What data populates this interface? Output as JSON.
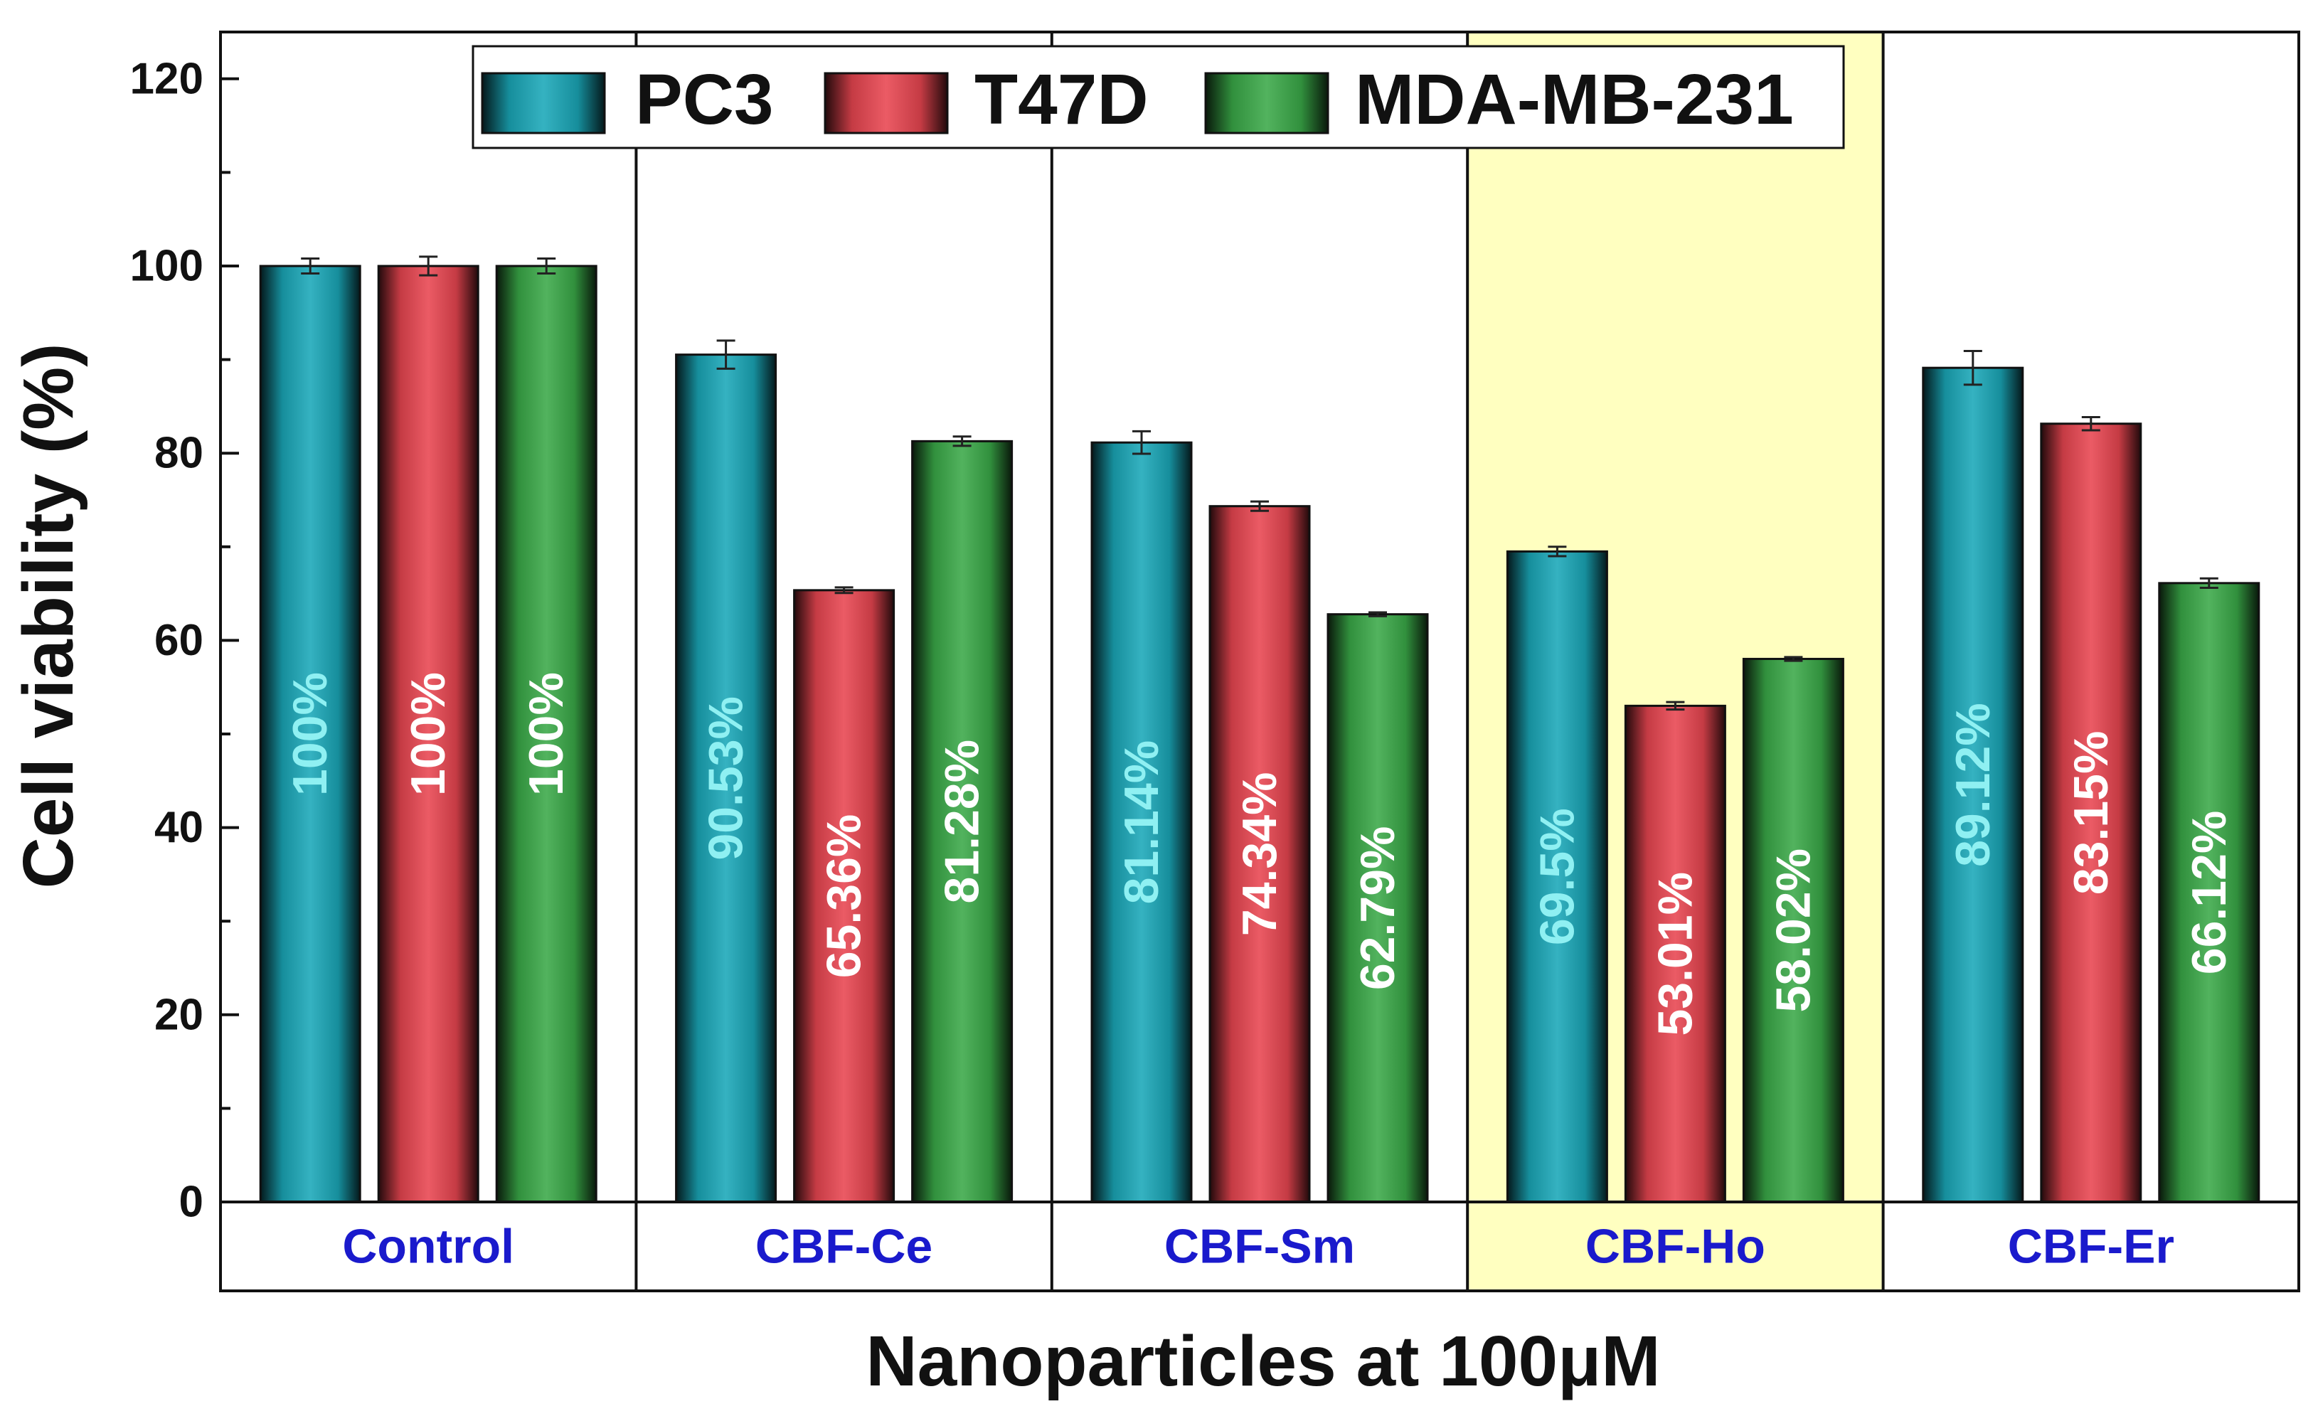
{
  "chart_data": {
    "type": "bar",
    "xlabel": "Nanoparticles at 100μM",
    "ylabel": "Cell viability (%)",
    "ylim": [
      0,
      125
    ],
    "yticks": [
      0,
      20,
      40,
      60,
      80,
      100,
      120
    ],
    "grid": false,
    "legend_position": "top-center",
    "highlighted_category": "CBF-Ho",
    "categories": [
      "Control",
      "CBF-Ce",
      "CBF-Sm",
      "CBF-Ho",
      "CBF-Er"
    ],
    "series": [
      {
        "name": "PC3",
        "color": "#1aa7b8",
        "values": [
          100,
          90.53,
          81.14,
          69.5,
          89.12
        ],
        "errors": [
          0.8,
          1.5,
          1.2,
          0.5,
          1.8
        ],
        "labels": [
          "100%",
          "90.53%",
          "81.14%",
          "69.5%",
          "89.12%"
        ]
      },
      {
        "name": "T47D",
        "color": "#e84550",
        "values": [
          100,
          65.36,
          74.34,
          53.01,
          83.15
        ],
        "errors": [
          1.0,
          0.3,
          0.5,
          0.4,
          0.7
        ],
        "labels": [
          "100%",
          "65.36%",
          "74.34%",
          "53.01%",
          "83.15%"
        ]
      },
      {
        "name": "MDA-MB-231",
        "color": "#3aa948",
        "values": [
          100,
          81.28,
          62.79,
          58.02,
          66.12
        ],
        "errors": [
          0.8,
          0.5,
          0.2,
          0.2,
          0.5
        ],
        "labels": [
          "100%",
          "81.28%",
          "62.79%",
          "58.02%",
          "66.12%"
        ]
      }
    ]
  },
  "colors": {
    "group_label": "#1a1acc",
    "bar_label_cyan": "#8ff0f2",
    "bar_label_white": "#ffffff",
    "highlight": "#ffffc0"
  }
}
